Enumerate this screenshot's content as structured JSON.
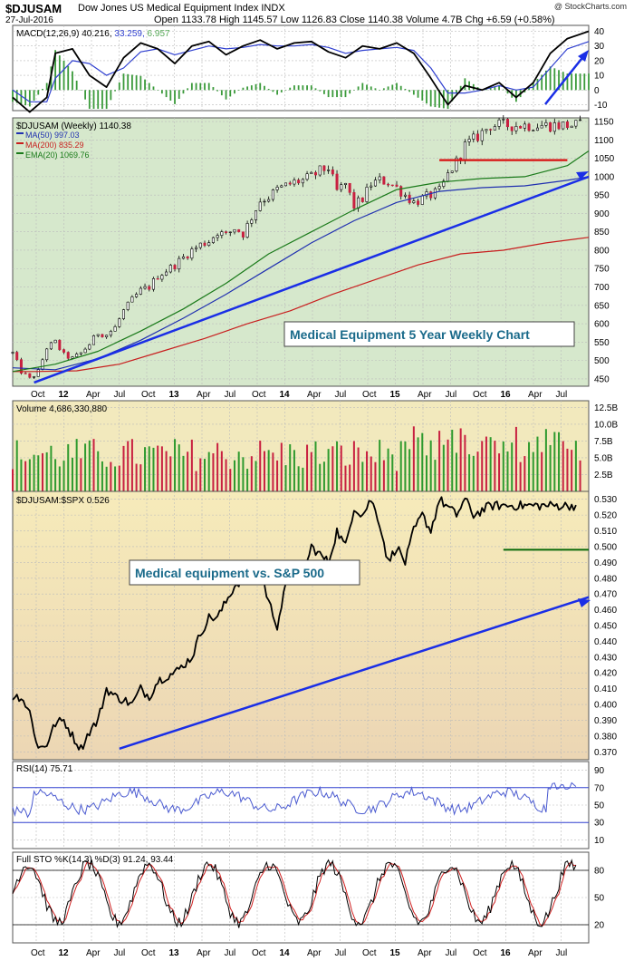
{
  "header": {
    "ticker": "$DJUSAM",
    "name": "Dow Jones US Medical Equipment Index INDX",
    "date": "27-Jul-2016",
    "ohlc_text": "Open 1133.78  High 1145.57  Low 1126.83  Close 1140.38  Volume 4.7B  Chg +6.59 (+0.58%)",
    "credit": "@ StockCharts.com"
  },
  "colors": {
    "price_bg": "#d6e8cc",
    "vol_bg": "#f2e9bd",
    "ratio_bg_top": "#f6ebba",
    "ratio_bg_bottom": "#ecd6b4",
    "ind_bg": "#ffffff",
    "trend_blue": "#1a2ee6",
    "res_red": "#d81010",
    "up_green": "#2e9a2e",
    "down_red": "#c82040"
  },
  "chart_data": [
    {
      "type": "line",
      "panel": "macd",
      "legend": "MACD(12,26,9) 40.216, 33.259, 6.957",
      "legend_values": [
        "40.216",
        "33.259",
        "6.957"
      ],
      "series": [
        {
          "name": "MACD",
          "x": [
            0,
            8,
            16,
            20,
            28,
            36,
            44,
            52,
            60,
            68,
            76,
            84,
            92,
            100,
            108,
            116,
            124,
            132,
            140,
            148,
            156,
            164,
            172,
            180,
            188,
            196,
            204,
            212,
            220,
            228,
            236,
            244,
            252,
            260,
            270
          ],
          "values": [
            -5,
            -15,
            -5,
            25,
            28,
            10,
            2,
            22,
            32,
            28,
            18,
            30,
            33,
            24,
            30,
            34,
            28,
            32,
            33,
            26,
            22,
            30,
            28,
            32,
            25,
            8,
            -10,
            3,
            0,
            5,
            -5,
            5,
            25,
            35,
            40
          ]
        },
        {
          "name": "Signal",
          "x": [
            0,
            8,
            16,
            20,
            28,
            36,
            44,
            52,
            60,
            68,
            76,
            84,
            92,
            100,
            108,
            116,
            124,
            132,
            140,
            148,
            156,
            164,
            172,
            180,
            188,
            196,
            204,
            212,
            220,
            228,
            236,
            244,
            252,
            260,
            270
          ],
          "values": [
            0,
            -8,
            -8,
            8,
            20,
            18,
            10,
            15,
            26,
            28,
            24,
            27,
            30,
            28,
            29,
            31,
            30,
            30,
            31,
            29,
            25,
            27,
            28,
            29,
            27,
            15,
            -2,
            -2,
            0,
            3,
            0,
            2,
            15,
            28,
            33
          ]
        }
      ],
      "y_ticks": [
        -10,
        0,
        10,
        20,
        30,
        40
      ],
      "ylim": [
        -14,
        44
      ]
    },
    {
      "type": "candlestick",
      "panel": "price",
      "legend": "$DJUSAM (Weekly) 1140.38",
      "overlays": [
        {
          "name": "MA(50) 997.03"
        },
        {
          "name": "MA(200) 835.29"
        },
        {
          "name": "EMA(20) 1069.76"
        }
      ],
      "title_box": "Medical Equipment 5 Year Weekly Chart",
      "close_path": {
        "x": [
          0,
          4,
          8,
          12,
          16,
          20,
          24,
          28,
          32,
          36,
          40,
          44,
          48,
          52,
          56,
          60,
          64,
          68,
          72,
          76,
          80,
          84,
          88,
          92,
          96,
          100,
          104,
          108,
          112,
          116,
          120,
          124,
          128,
          132,
          136,
          140,
          144,
          148,
          152,
          156,
          160,
          164,
          168,
          172,
          176,
          180,
          184,
          188,
          192,
          196,
          200,
          204,
          208,
          212,
          216,
          220,
          224,
          228,
          232,
          236,
          240,
          244,
          248,
          252,
          256,
          260,
          264,
          270
        ],
        "values": [
          520,
          470,
          450,
          470,
          535,
          550,
          515,
          505,
          520,
          545,
          575,
          570,
          590,
          635,
          665,
          690,
          700,
          730,
          745,
          760,
          780,
          800,
          815,
          825,
          850,
          840,
          860,
          845,
          890,
          935,
          945,
          965,
          975,
          985,
          990,
          1000,
          1015,
          1025,
          960,
          980,
          920,
          940,
          980,
          990,
          985,
          970,
          950,
          930,
          940,
          950,
          960,
          1005,
          1040,
          1085,
          1100,
          1120,
          1140,
          1140,
          1140,
          1140,
          1140,
          1140,
          1140,
          1140,
          1140,
          1140,
          1140,
          1140
        ]
      },
      "ma50": {
        "x": [
          0,
          20,
          40,
          60,
          80,
          100,
          120,
          140,
          160,
          180,
          200,
          220,
          240,
          260,
          270
        ],
        "values": [
          480,
          475,
          505,
          555,
          615,
          680,
          750,
          820,
          880,
          930,
          960,
          970,
          975,
          990,
          1000
        ]
      },
      "ema20": {
        "x": [
          0,
          20,
          40,
          60,
          80,
          100,
          120,
          140,
          160,
          180,
          200,
          220,
          240,
          260,
          270
        ],
        "values": [
          470,
          490,
          525,
          580,
          640,
          710,
          790,
          850,
          910,
          965,
          985,
          995,
          1000,
          1030,
          1070
        ]
      },
      "ma200": {
        "x": [
          0,
          10,
          30,
          50,
          70,
          90,
          110,
          130,
          150,
          170,
          190,
          210,
          230,
          250,
          270
        ],
        "values": [
          470,
          470,
          472,
          490,
          525,
          560,
          600,
          635,
          680,
          720,
          760,
          790,
          800,
          820,
          835
        ]
      },
      "support_line": {
        "x": [
          10,
          270
        ],
        "values": [
          440,
          1000
        ]
      },
      "resistance_line": {
        "x": [
          200,
          260
        ],
        "values": [
          1045,
          1045
        ]
      },
      "y_ticks": [
        450,
        500,
        550,
        600,
        650,
        700,
        750,
        800,
        850,
        900,
        950,
        1000,
        1050,
        1100,
        1150
      ],
      "ylim": [
        430,
        1160
      ]
    },
    {
      "type": "bar",
      "panel": "volume",
      "legend": "Volume 4,686,330,880",
      "y_ticks": [
        2.5,
        5.0,
        7.5,
        10.0,
        12.5
      ],
      "ylim": [
        0,
        13.5
      ]
    },
    {
      "type": "line",
      "panel": "ratio",
      "legend": "$DJUSAM:$SPX 0.526",
      "title_box": "Medical equipment vs. S&P 500",
      "series": [
        {
          "name": "Ratio",
          "x": [
            0,
            4,
            8,
            12,
            16,
            20,
            24,
            28,
            32,
            36,
            40,
            44,
            48,
            52,
            56,
            60,
            64,
            68,
            72,
            76,
            80,
            84,
            88,
            92,
            96,
            100,
            104,
            108,
            112,
            116,
            120,
            124,
            128,
            132,
            136,
            140,
            144,
            148,
            152,
            156,
            160,
            164,
            168,
            172,
            176,
            180,
            184,
            188,
            192,
            196,
            200,
            204,
            208,
            212,
            216,
            220,
            224,
            228,
            232,
            236,
            240,
            244,
            248,
            252,
            256,
            260,
            264,
            270
          ],
          "values": [
            0.405,
            0.405,
            0.395,
            0.372,
            0.375,
            0.388,
            0.39,
            0.38,
            0.372,
            0.383,
            0.39,
            0.41,
            0.405,
            0.403,
            0.4,
            0.41,
            0.405,
            0.415,
            0.418,
            0.42,
            0.425,
            0.43,
            0.445,
            0.455,
            0.455,
            0.465,
            0.475,
            0.48,
            0.49,
            0.485,
            0.465,
            0.45,
            0.475,
            0.49,
            0.48,
            0.5,
            0.495,
            0.49,
            0.51,
            0.5,
            0.525,
            0.52,
            0.53,
            0.515,
            0.49,
            0.5,
            0.49,
            0.51,
            0.52,
            0.51,
            0.53,
            0.525,
            0.52,
            0.53,
            0.52,
            0.523,
            0.526,
            0.526,
            0.526,
            0.526,
            0.526,
            0.526,
            0.526,
            0.526,
            0.526,
            0.526,
            0.526,
            0.526
          ]
        }
      ],
      "support_line": {
        "x": [
          50,
          270
        ],
        "values": [
          0.372,
          0.468
        ]
      },
      "level_line": {
        "x": [
          230,
          270
        ],
        "values": [
          0.498,
          0.498
        ]
      },
      "y_ticks": [
        0.37,
        0.38,
        0.39,
        0.4,
        0.41,
        0.42,
        0.43,
        0.44,
        0.45,
        0.46,
        0.47,
        0.48,
        0.49,
        0.5,
        0.51,
        0.52,
        0.53
      ],
      "ylim": [
        0.365,
        0.535
      ]
    },
    {
      "type": "line",
      "panel": "rsi",
      "legend": "RSI(14) 75.71",
      "y_ticks": [
        10,
        30,
        50,
        70,
        90
      ],
      "ylim": [
        0,
        100
      ]
    },
    {
      "type": "line",
      "panel": "stochastic",
      "legend": "Full STO %K(14,3) %D(3) 91.24, 93.44",
      "legend_values": [
        "91.24",
        "93.44"
      ],
      "y_ticks": [
        20,
        50,
        80
      ],
      "ylim": [
        0,
        100
      ]
    }
  ],
  "x_axis": {
    "labels": [
      "Oct",
      "12",
      "Apr",
      "Jul",
      "Oct",
      "13",
      "Apr",
      "Jul",
      "Oct",
      "14",
      "Apr",
      "Jul",
      "Oct",
      "15",
      "Apr",
      "Jul",
      "Oct",
      "16",
      "Apr",
      "Jul"
    ],
    "bold": [
      "12",
      "13",
      "14",
      "15",
      "16"
    ]
  }
}
